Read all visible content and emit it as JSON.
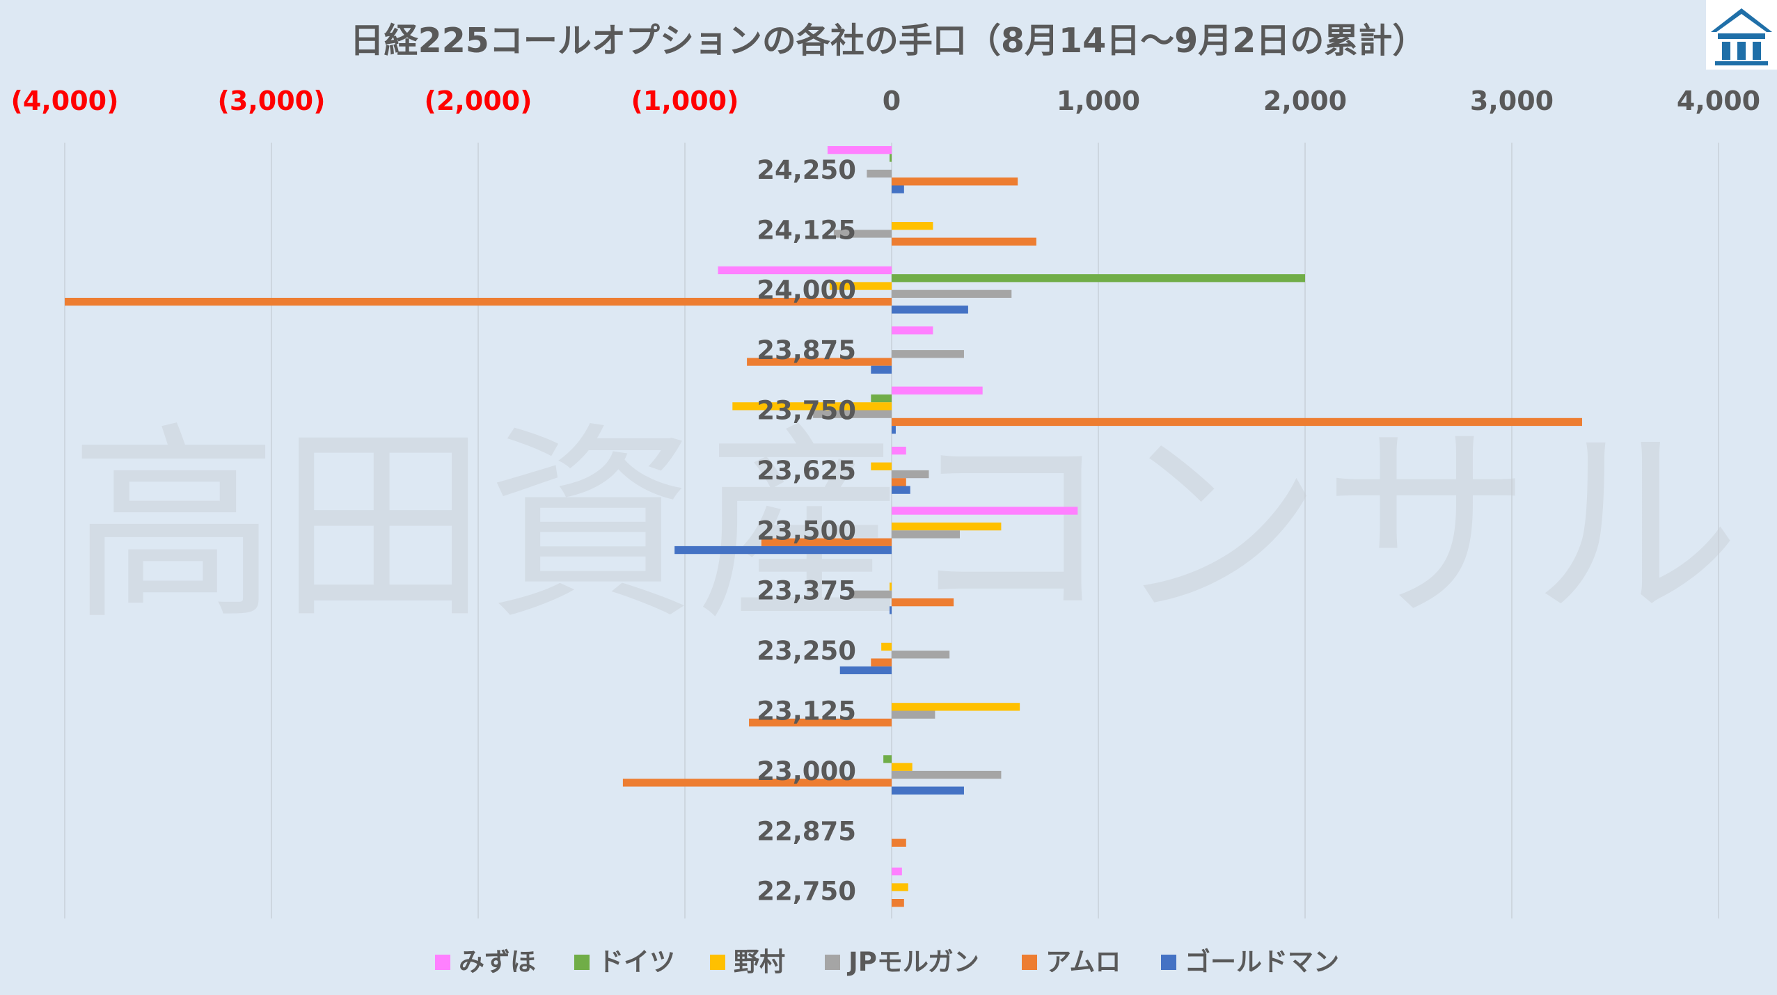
{
  "chart_data": {
    "type": "bar",
    "orientation": "horizontal",
    "title": "日経225コールオプションの各社の手口（8月14日～9月2日の累計）",
    "categories": [
      "24,250",
      "24,125",
      "24,000",
      "23,875",
      "23,750",
      "23,625",
      "23,500",
      "23,375",
      "23,250",
      "23,125",
      "23,000",
      "22,875",
      "22,750"
    ],
    "series": [
      {
        "name": "みずほ",
        "color": "#ff80ff",
        "values": [
          -310,
          0,
          -840,
          200,
          440,
          70,
          900,
          0,
          0,
          0,
          0,
          0,
          50
        ]
      },
      {
        "name": "ドイツ",
        "color": "#70ad47",
        "values": [
          -10,
          0,
          2000,
          0,
          -100,
          0,
          0,
          0,
          0,
          0,
          -40,
          0,
          0
        ]
      },
      {
        "name": "野村",
        "color": "#ffc000",
        "values": [
          0,
          200,
          -300,
          0,
          -770,
          -100,
          530,
          -10,
          -50,
          620,
          100,
          0,
          80
        ]
      },
      {
        "name": "JPモルガン",
        "color": "#a5a5a5",
        "values": [
          -120,
          -280,
          580,
          350,
          -380,
          180,
          330,
          -190,
          280,
          210,
          530,
          0,
          0
        ]
      },
      {
        "name": "アムロ",
        "color": "#ed7d31",
        "values": [
          610,
          700,
          -4000,
          -700,
          3340,
          70,
          -630,
          300,
          -100,
          -690,
          -1300,
          70,
          60
        ]
      },
      {
        "name": "ゴールドマン",
        "color": "#4472c4",
        "values": [
          60,
          0,
          370,
          -100,
          20,
          90,
          -1050,
          -10,
          -250,
          0,
          350,
          0,
          0
        ]
      }
    ],
    "xlim": [
      -4000,
      4000
    ],
    "xticks": [
      -4000,
      -3000,
      -2000,
      -1000,
      0,
      1000,
      2000,
      3000,
      4000
    ],
    "xtick_labels": [
      "(4,000)",
      "(3,000)",
      "(2,000)",
      "(1,000)",
      "0",
      "1,000",
      "2,000",
      "3,000",
      "4,000"
    ],
    "negative_tick_color": "#ff0000",
    "grid": "vertical",
    "legend_position": "bottom"
  },
  "watermark": "高田資産コンサル",
  "logo_icon": "building-logo-icon"
}
